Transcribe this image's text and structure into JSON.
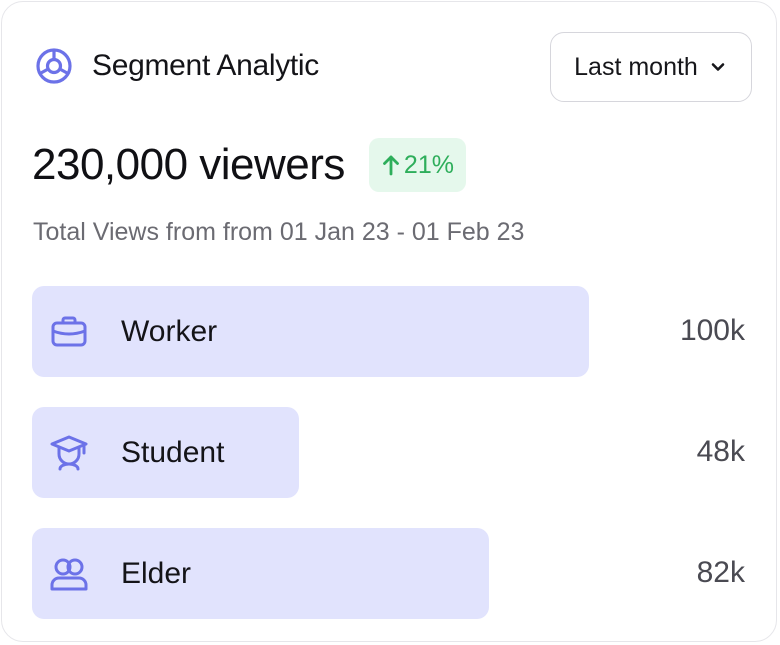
{
  "card": {
    "title": "Segment Analytic",
    "title_icon": "segment-chart-icon"
  },
  "range_select": {
    "selected": "Last month",
    "icon": "chevron-down-icon"
  },
  "metric": {
    "value": "230,000 viewers",
    "change": "21%",
    "change_direction": "up",
    "change_icon": "arrow-up-icon"
  },
  "subtitle": "Total Views from from 01 Jan 23 - 01 Feb 23",
  "colors": {
    "accent": "#6C72E8",
    "bar_fill": "#E1E3FD",
    "positive": "#2EAE5B",
    "positive_bg": "#E5F8EC"
  },
  "segments": [
    {
      "label": "Worker",
      "value": "100k",
      "amount": 100,
      "icon": "briefcase-icon"
    },
    {
      "label": "Student",
      "value": "48k",
      "amount": 48,
      "icon": "graduation-cap-icon"
    },
    {
      "label": "Elder",
      "value": "82k",
      "amount": 82,
      "icon": "users-icon"
    }
  ]
}
